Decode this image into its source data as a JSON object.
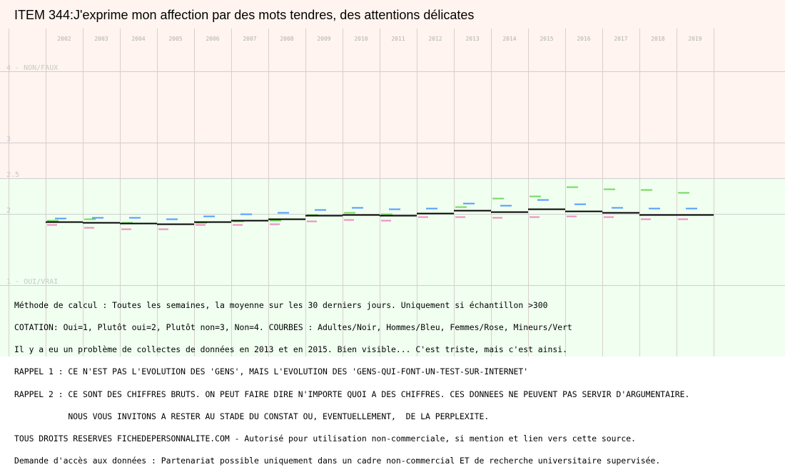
{
  "title": "ITEM 344:J'exprime mon affection par des mots tendres, des attentions délicates",
  "chart_data": {
    "type": "line",
    "title": "ITEM 344:J'exprime mon affection par des mots tendres, des attentions délicates",
    "categories": [
      "2002",
      "2003",
      "2004",
      "2005",
      "2006",
      "2007",
      "2008",
      "2009",
      "2010",
      "2011",
      "2012",
      "2013",
      "2014",
      "2015",
      "2016",
      "2017",
      "2018",
      "2019"
    ],
    "y_ticks": [
      {
        "value": 4,
        "label": "4 - NON/FAUX"
      },
      {
        "value": 3,
        "label": "3"
      },
      {
        "value": 2.5,
        "label": "2.5"
      },
      {
        "value": 2,
        "label": "2"
      },
      {
        "value": 1,
        "label": "1 - OUI/VRAI"
      }
    ],
    "ylim": [
      1,
      4
    ],
    "grid": true,
    "bands": [
      {
        "from": 2.5,
        "to": 4,
        "color": "#fff4ef"
      },
      {
        "from": 1,
        "to": 2.5,
        "color": "#f0fff0"
      }
    ],
    "series": [
      {
        "name": "Adultes",
        "color": "#000000",
        "values": [
          1.89,
          1.88,
          1.87,
          1.86,
          1.89,
          1.91,
          1.93,
          1.98,
          1.99,
          1.98,
          2.01,
          2.05,
          2.03,
          2.07,
          2.04,
          2.02,
          1.99,
          1.99
        ]
      },
      {
        "name": "Hommes",
        "color": "#4f9bff",
        "values": [
          1.94,
          1.95,
          1.95,
          1.93,
          1.97,
          2.0,
          2.02,
          2.06,
          2.09,
          2.07,
          2.08,
          2.15,
          2.12,
          2.2,
          2.14,
          2.09,
          2.08,
          2.08
        ]
      },
      {
        "name": "Femmes",
        "color": "#ef88c0",
        "values": [
          1.85,
          1.81,
          1.79,
          1.79,
          1.85,
          1.85,
          1.86,
          1.9,
          1.92,
          1.91,
          1.96,
          1.96,
          1.95,
          1.96,
          1.97,
          1.96,
          1.93,
          1.93
        ]
      },
      {
        "name": "Mineurs",
        "color": "#72d85c",
        "values": [
          1.91,
          1.93,
          1.88,
          1.86,
          1.88,
          1.9,
          1.91,
          1.99,
          2.02,
          2.0,
          2.01,
          2.1,
          2.22,
          2.25,
          2.38,
          2.35,
          2.34,
          2.3
        ]
      }
    ]
  },
  "notes": [
    "Méthode de calcul : Toutes les semaines, la moyenne sur les 30 derniers jours. Uniquement si échantillon >300",
    "COTATION: Oui=1, Plutôt oui=2, Plutôt non=3, Non=4. COURBES : Adultes/Noir, Hommes/Bleu, Femmes/Rose, Mineurs/Vert",
    "Il y a eu un problème de collectes de données en 2013 et en 2015. Bien visible... C'est triste, mais c'est ainsi.",
    "RAPPEL 1 : CE N'EST PAS L'EVOLUTION DES 'GENS', MAIS L'EVOLUTION DES 'GENS-QUI-FONT-UN-TEST-SUR-INTERNET'",
    "RAPPEL 2 : CE SONT DES CHIFFRES BRUTS. ON PEUT FAIRE DIRE N'IMPORTE QUOI A DES CHIFFRES. CES DONNEES NE PEUVENT PAS SERVIR D'ARGUMENTAIRE.",
    "           NOUS VOUS INVITONS A RESTER AU STADE DU CONSTAT OU, EVENTUELLEMENT,  DE LA PERPLEXITE.",
    "TOUS DROITS RESERVES FICHEDEPERSONNALITE.COM - Autorisé pour utilisation non-commerciale, si mention et lien vers cette source.",
    "Demande d'accès aux données : Partenariat possible uniquement dans un cadre non-commercial ET de recherche universitaire supervisée."
  ]
}
